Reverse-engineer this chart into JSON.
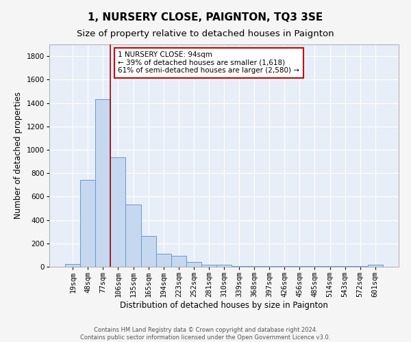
{
  "title": "1, NURSERY CLOSE, PAIGNTON, TQ3 3SE",
  "subtitle": "Size of property relative to detached houses in Paignton",
  "xlabel": "Distribution of detached houses by size in Paignton",
  "ylabel": "Number of detached properties",
  "categories": [
    "19sqm",
    "48sqm",
    "77sqm",
    "106sqm",
    "135sqm",
    "165sqm",
    "194sqm",
    "223sqm",
    "252sqm",
    "281sqm",
    "310sqm",
    "339sqm",
    "368sqm",
    "397sqm",
    "426sqm",
    "456sqm",
    "485sqm",
    "514sqm",
    "543sqm",
    "572sqm",
    "601sqm"
  ],
  "values": [
    25,
    740,
    1430,
    935,
    530,
    265,
    110,
    95,
    40,
    20,
    15,
    5,
    5,
    5,
    5,
    5,
    5,
    5,
    5,
    5,
    15
  ],
  "bar_color": "#c5d8f0",
  "bar_edge_color": "#6699cc",
  "background_color": "#e8eef8",
  "grid_color": "#ffffff",
  "vline_color": "#aa0000",
  "annotation_text": "1 NURSERY CLOSE: 94sqm\n← 39% of detached houses are smaller (1,618)\n61% of semi-detached houses are larger (2,580) →",
  "annotation_box_color": "#ffffff",
  "annotation_box_edge": "#cc0000",
  "ylim": [
    0,
    1900
  ],
  "yticks": [
    0,
    200,
    400,
    600,
    800,
    1000,
    1200,
    1400,
    1600,
    1800
  ],
  "footer": "Contains HM Land Registry data © Crown copyright and database right 2024.\nContains public sector information licensed under the Open Government Licence v3.0.",
  "title_fontsize": 11,
  "subtitle_fontsize": 9.5,
  "label_fontsize": 8.5,
  "tick_fontsize": 7.5,
  "footer_fontsize": 6
}
